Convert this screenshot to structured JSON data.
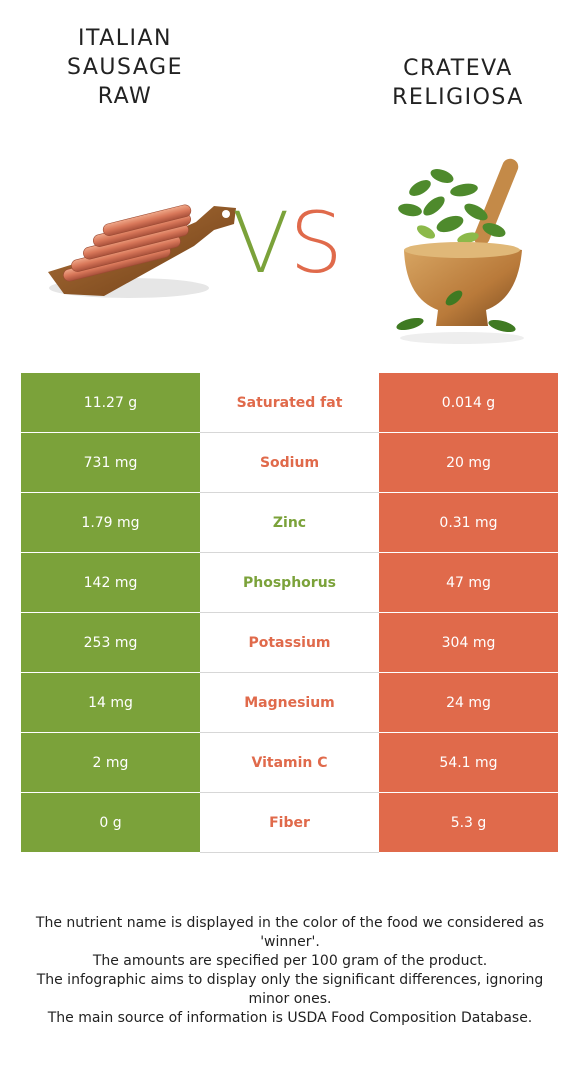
{
  "left_food": {
    "title_lines": [
      "ITALIAN",
      "SAUSAGE",
      "RAW"
    ],
    "image_icon": "sausages-on-board-icon"
  },
  "right_food": {
    "title_lines": [
      "CRATEVA",
      "RELIGIOSA"
    ],
    "image_icon": "herbs-in-mortar-icon"
  },
  "vs": {
    "v": "V",
    "s": "S"
  },
  "colors": {
    "left": "#7ba23a",
    "right": "#e06a4b"
  },
  "rows": [
    {
      "nutrient": "Saturated fat",
      "left": "11.27 g",
      "right": "0.014 g",
      "winner": "right"
    },
    {
      "nutrient": "Sodium",
      "left": "731 mg",
      "right": "20 mg",
      "winner": "right"
    },
    {
      "nutrient": "Zinc",
      "left": "1.79 mg",
      "right": "0.31 mg",
      "winner": "left"
    },
    {
      "nutrient": "Phosphorus",
      "left": "142 mg",
      "right": "47 mg",
      "winner": "left"
    },
    {
      "nutrient": "Potassium",
      "left": "253 mg",
      "right": "304 mg",
      "winner": "right"
    },
    {
      "nutrient": "Magnesium",
      "left": "14 mg",
      "right": "24 mg",
      "winner": "right"
    },
    {
      "nutrient": "Vitamin C",
      "left": "2 mg",
      "right": "54.1 mg",
      "winner": "right"
    },
    {
      "nutrient": "Fiber",
      "left": "0 g",
      "right": "5.3 g",
      "winner": "right"
    }
  ],
  "footer": [
    "The nutrient name is displayed in the color of the food we considered as 'winner'.",
    "The amounts are specified per 100 gram of the product.",
    "The infographic aims to display only the significant differences, ignoring minor ones.",
    "The main source of information is USDA Food Composition Database."
  ]
}
